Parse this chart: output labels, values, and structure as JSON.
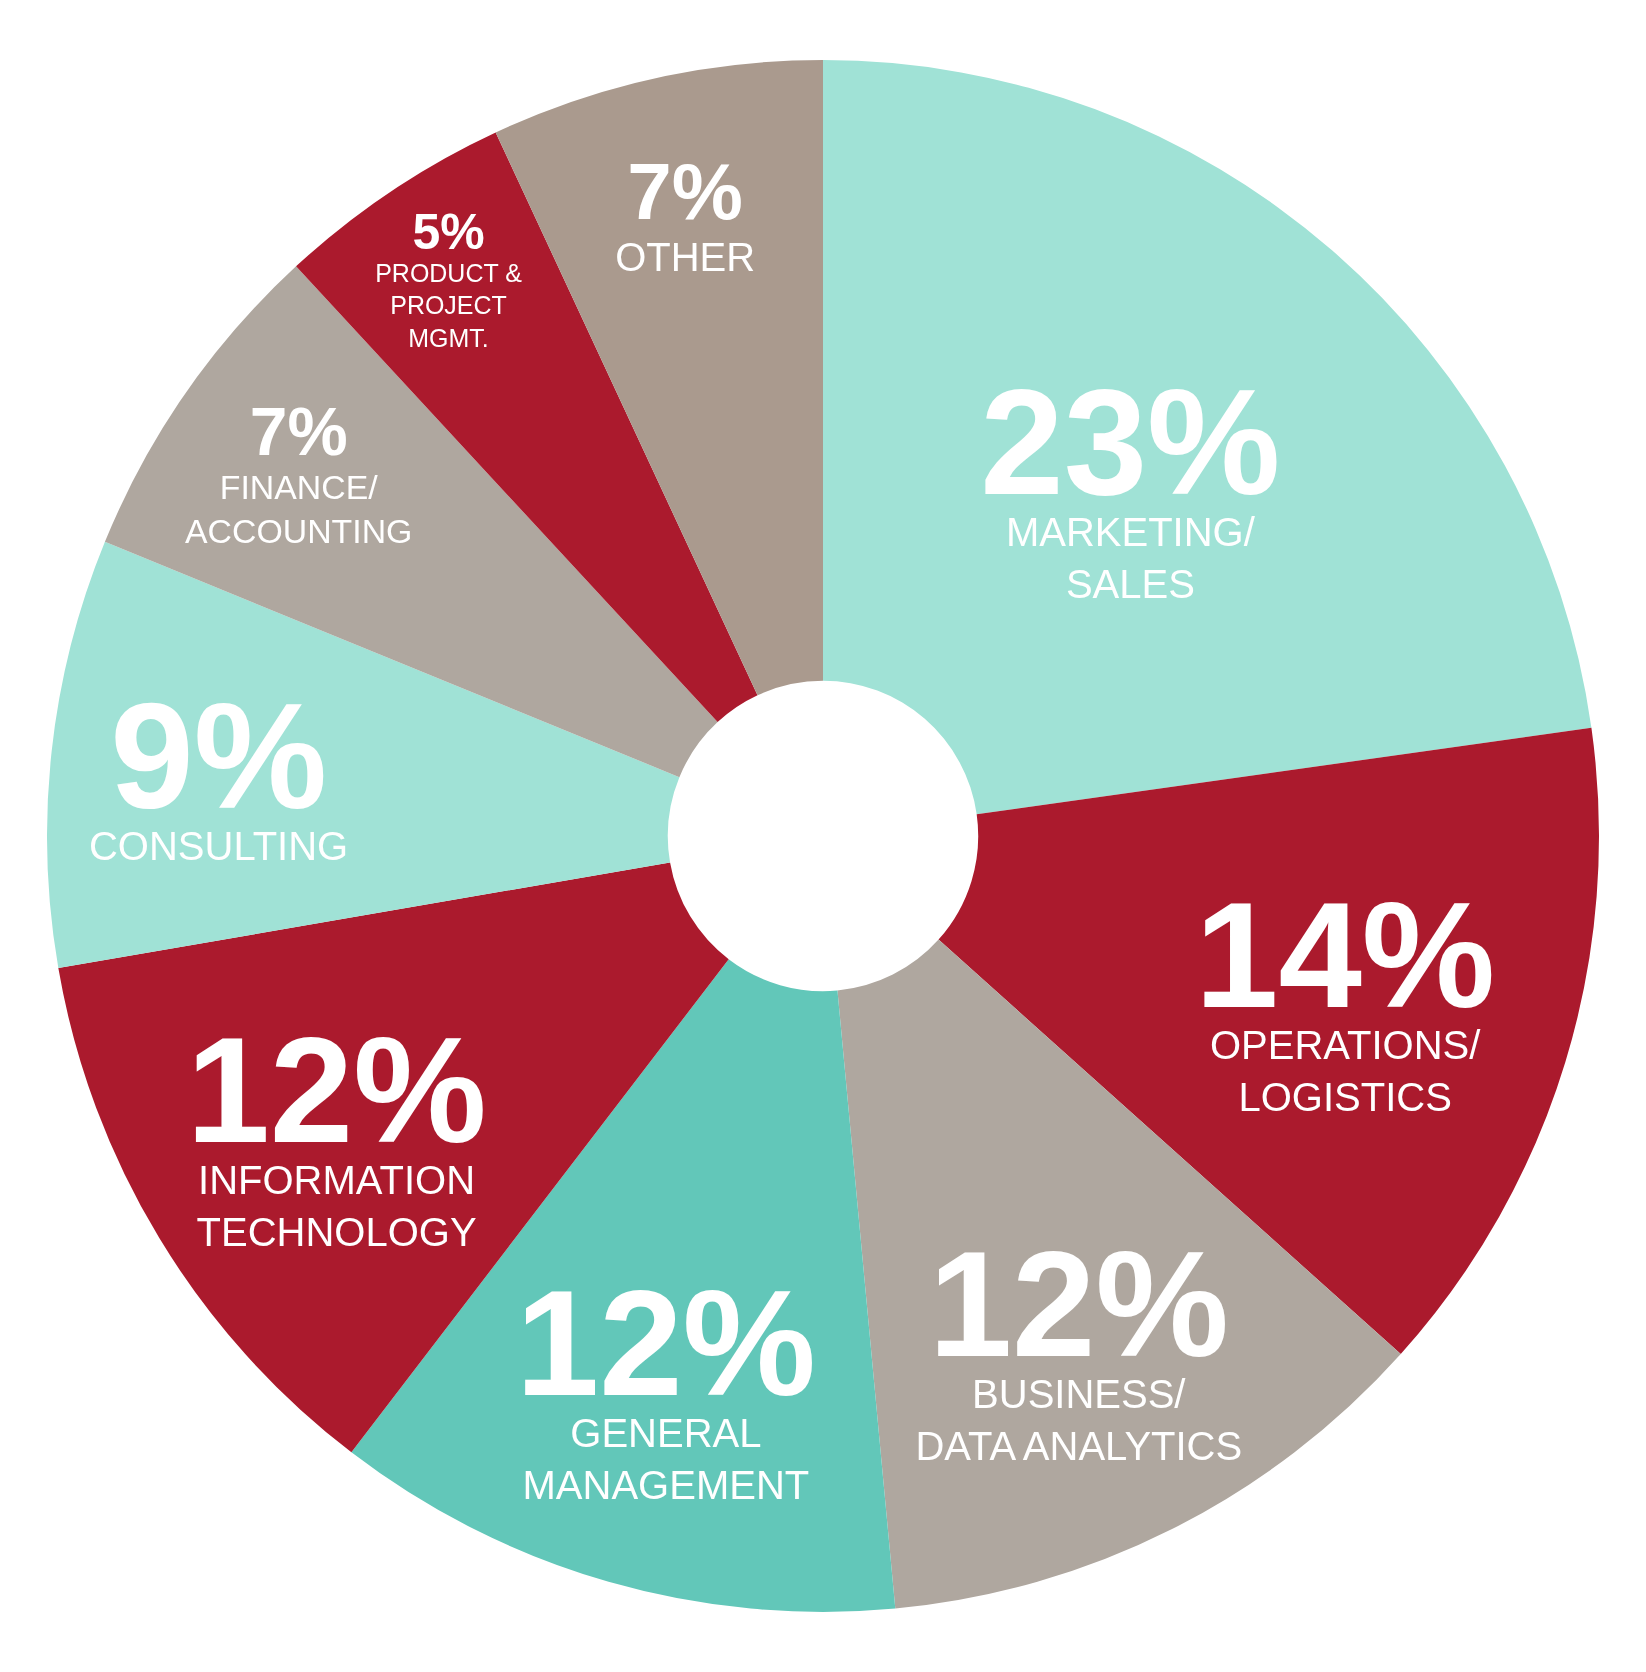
{
  "chart_data": {
    "type": "donut",
    "categories": [
      "MARKETING/\nSALES",
      "OPERATIONS/\nLOGISTICS",
      "BUSINESS/\nDATA ANALYTICS",
      "GENERAL\nMANAGEMENT",
      "INFORMATION\nTECHNOLOGY",
      "CONSULTING",
      "FINANCE/\nACCOUNTING",
      "PRODUCT &\nPROJECT\nMGMT.",
      "OTHER"
    ],
    "values": [
      23,
      14,
      12,
      12,
      12,
      9,
      7,
      5,
      7
    ],
    "value_labels": [
      "23%",
      "14%",
      "12%",
      "12%",
      "12%",
      "9%",
      "7%",
      "5%",
      "7%"
    ],
    "colors": [
      "#a0e2d6",
      "#ab1a2d",
      "#afa79f",
      "#62c7b9",
      "#ab1a2d",
      "#a0e2d6",
      "#afa79f",
      "#ab1a2d",
      "#aa9a8e"
    ],
    "legend": false
  }
}
